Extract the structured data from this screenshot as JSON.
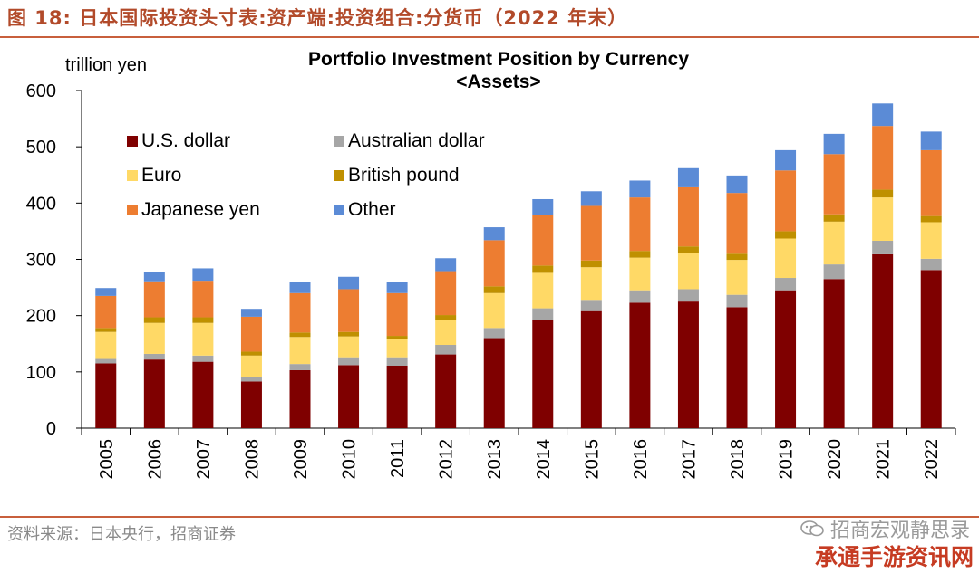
{
  "figure": {
    "title": "图 18:  日本国际投资头寸表:资产端:投资组合:分货币（2022 年末）",
    "source": "资料来源：日本央行，招商证券",
    "brand_name": "招商宏观静思录",
    "watermark": "承通手游资讯网"
  },
  "colors": {
    "accent": "#c85f3c",
    "us_dollar": "#7f0000",
    "australian_dollar": "#a6a6a6",
    "euro": "#ffd966",
    "british_pound": "#bf9000",
    "japanese_yen": "#ed7d31",
    "other": "#5b8bd6"
  },
  "chart_data": {
    "type": "bar",
    "stacked": true,
    "title": "Portfolio Investment Position by Currency",
    "subtitle": "<Assets>",
    "ylabel": "trillion yen",
    "xlabel": "",
    "ylim": [
      0,
      600
    ],
    "yticks": [
      0,
      100,
      200,
      300,
      400,
      500,
      600
    ],
    "grid": false,
    "legend_position": "top-left",
    "categories": [
      "2005",
      "2006",
      "2007",
      "2008",
      "2009",
      "2010",
      "2011",
      "2012",
      "2013",
      "2014",
      "2015",
      "2016",
      "2017",
      "2018",
      "2019",
      "2020",
      "2021",
      "2022"
    ],
    "series": [
      {
        "name": "U.S. dollar",
        "color": "#7f0000",
        "values": [
          115,
          122,
          118,
          83,
          103,
          112,
          111,
          131,
          160,
          193,
          208,
          223,
          225,
          215,
          245,
          265,
          309,
          281
        ]
      },
      {
        "name": "Australian dollar",
        "color": "#a6a6a6",
        "values": [
          8,
          10,
          11,
          8,
          11,
          14,
          15,
          17,
          18,
          20,
          20,
          22,
          22,
          22,
          22,
          26,
          24,
          20
        ]
      },
      {
        "name": "Euro",
        "color": "#ffd966",
        "values": [
          48,
          55,
          58,
          38,
          48,
          37,
          32,
          44,
          62,
          63,
          58,
          58,
          64,
          62,
          70,
          76,
          77,
          65
        ]
      },
      {
        "name": "British pound",
        "color": "#bf9000",
        "values": [
          7,
          10,
          10,
          7,
          8,
          8,
          6,
          9,
          12,
          13,
          12,
          12,
          12,
          11,
          13,
          13,
          14,
          11
        ]
      },
      {
        "name": "Japanese yen",
        "color": "#ed7d31",
        "values": [
          57,
          64,
          65,
          62,
          70,
          76,
          76,
          78,
          82,
          90,
          97,
          95,
          105,
          108,
          108,
          107,
          113,
          117
        ]
      },
      {
        "name": "Other",
        "color": "#5b8bd6",
        "values": [
          14,
          16,
          22,
          14,
          20,
          22,
          19,
          23,
          23,
          28,
          26,
          30,
          34,
          31,
          36,
          36,
          40,
          33
        ]
      }
    ],
    "legend_order": [
      "U.S. dollar",
      "Australian dollar",
      "Euro",
      "British pound",
      "Japanese yen",
      "Other"
    ]
  }
}
